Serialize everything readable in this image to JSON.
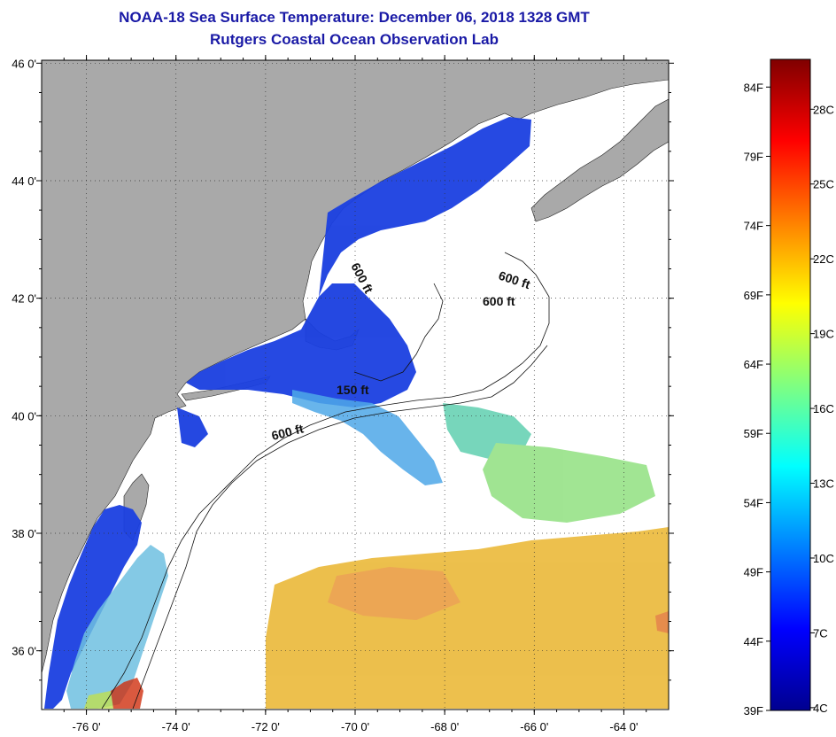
{
  "header": {
    "title": "NOAA-18 Sea Surface Temperature:  December 06, 2018 1328 GMT",
    "subtitle": "Rutgers Coastal Ocean Observation Lab"
  },
  "map": {
    "lat_labels": [
      "46 0'",
      "44 0'",
      "42 0'",
      "40 0'",
      "38 0'",
      "36 0'"
    ],
    "lat_values": [
      46,
      44,
      42,
      40,
      38,
      36
    ],
    "lon_labels": [
      "-76 0'",
      "-74 0'",
      "-72 0'",
      "-70 0'",
      "-68 0'",
      "-66 0'",
      "-64 0'"
    ],
    "lon_values": [
      -76,
      -74,
      -72,
      -70,
      -68,
      -66,
      -64
    ],
    "lat_range": [
      35,
      46.05
    ],
    "lon_range": [
      -77,
      -63
    ],
    "isobath_labels": [
      "600 ft",
      "600 ft",
      "600 ft",
      "150 ft",
      "600 ft"
    ],
    "colors": {
      "land": "#a9a9a9",
      "water_cold": "#1a3fe0",
      "water_cool": "#4ea8e8",
      "water_warm": "#e8b020",
      "water_hot": "#d03010"
    }
  },
  "colorbar": {
    "f_labels": [
      "84F",
      "79F",
      "74F",
      "69F",
      "64F",
      "59F",
      "54F",
      "49F",
      "44F",
      "39F"
    ],
    "c_labels": [
      "28C",
      "25C",
      "22C",
      "19C",
      "16C",
      "13C",
      "10C",
      "7C",
      "4C"
    ],
    "min_f": 39,
    "max_f": 86,
    "colors": [
      "#00008f",
      "#0000ff",
      "#0080ff",
      "#00ffff",
      "#80ff80",
      "#ffff00",
      "#ff8000",
      "#ff0000",
      "#800000"
    ]
  }
}
